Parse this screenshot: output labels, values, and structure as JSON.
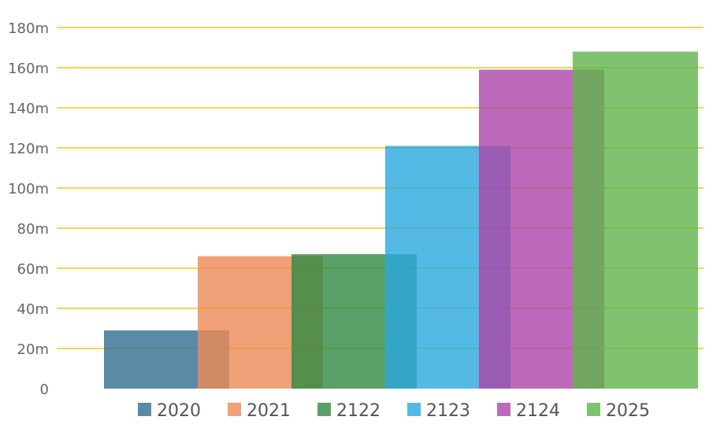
{
  "chart_data": {
    "type": "bar",
    "title": "",
    "xlabel": "",
    "ylabel": "",
    "ylim": [
      0,
      180
    ],
    "y_ticks": [
      {
        "value": 0,
        "label": "0"
      },
      {
        "value": 20,
        "label": "20m"
      },
      {
        "value": 40,
        "label": "40m"
      },
      {
        "value": 60,
        "label": "60m"
      },
      {
        "value": 80,
        "label": "80m"
      },
      {
        "value": 100,
        "label": "100m"
      },
      {
        "value": 120,
        "label": "120m"
      },
      {
        "value": 140,
        "label": "140m"
      },
      {
        "value": 160,
        "label": "160m"
      },
      {
        "value": 180,
        "label": "180m"
      }
    ],
    "grid": true,
    "grid_color": "#f5c518",
    "overlapping_bars": true,
    "legend_position": "bottom",
    "series": [
      {
        "name": "2020",
        "value": 29,
        "color": "#2f6e91"
      },
      {
        "name": "2021",
        "value": 66,
        "color": "#ed8a55"
      },
      {
        "name": "2122",
        "value": 67,
        "color": "#2f8a44"
      },
      {
        "name": "2123",
        "value": 121,
        "color": "#29a8dd"
      },
      {
        "name": "2124",
        "value": 159,
        "color": "#ab45a8"
      },
      {
        "name": "2025",
        "value": 168,
        "color": "#5fb44a"
      }
    ]
  }
}
